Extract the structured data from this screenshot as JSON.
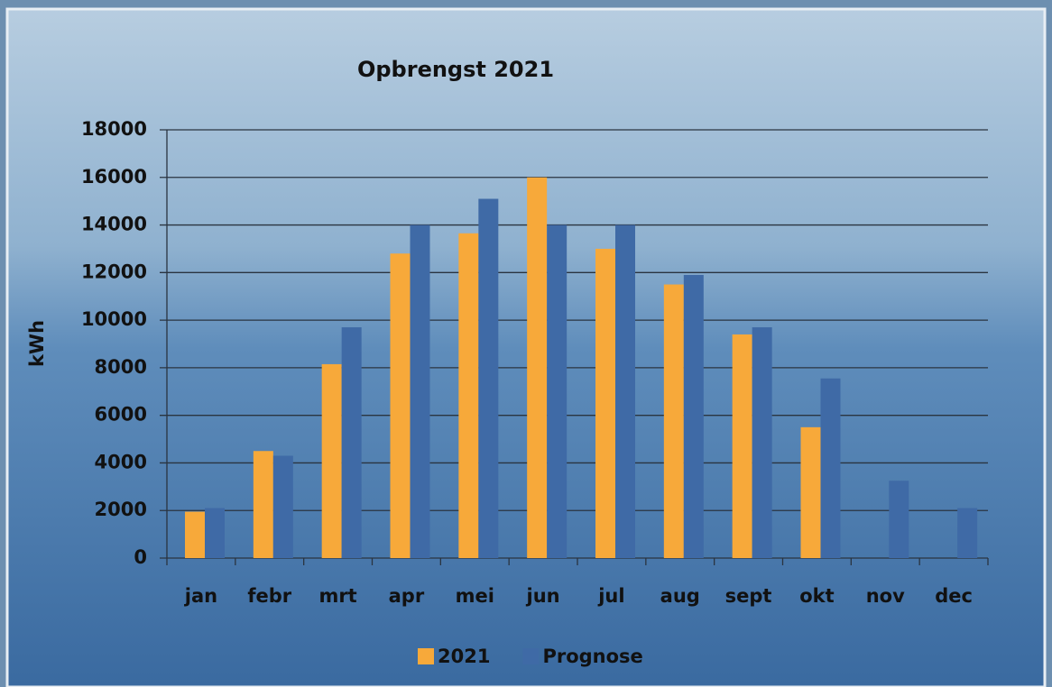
{
  "chart_data": {
    "type": "bar",
    "title": "Opbrengst 2021",
    "y_label": "kWh",
    "categories": [
      "jan",
      "febr",
      "mrt",
      "apr",
      "mei",
      "jun",
      "jul",
      "aug",
      "sept",
      "okt",
      "nov",
      "dec"
    ],
    "series": [
      {
        "name": "2021",
        "color": "#f7a93a",
        "values": [
          1950,
          4500,
          8150,
          12800,
          13650,
          16000,
          13000,
          11500,
          9400,
          5500,
          null,
          null
        ]
      },
      {
        "name": "Prognose",
        "color": "#3f6aa6",
        "values": [
          2100,
          4300,
          9700,
          14000,
          15100,
          14000,
          14000,
          11900,
          9700,
          7550,
          3250,
          2100
        ]
      }
    ],
    "ylim": [
      0,
      18000
    ],
    "yticks": [
      0,
      2000,
      4000,
      6000,
      8000,
      10000,
      12000,
      14000,
      16000,
      18000
    ],
    "grid": true
  }
}
